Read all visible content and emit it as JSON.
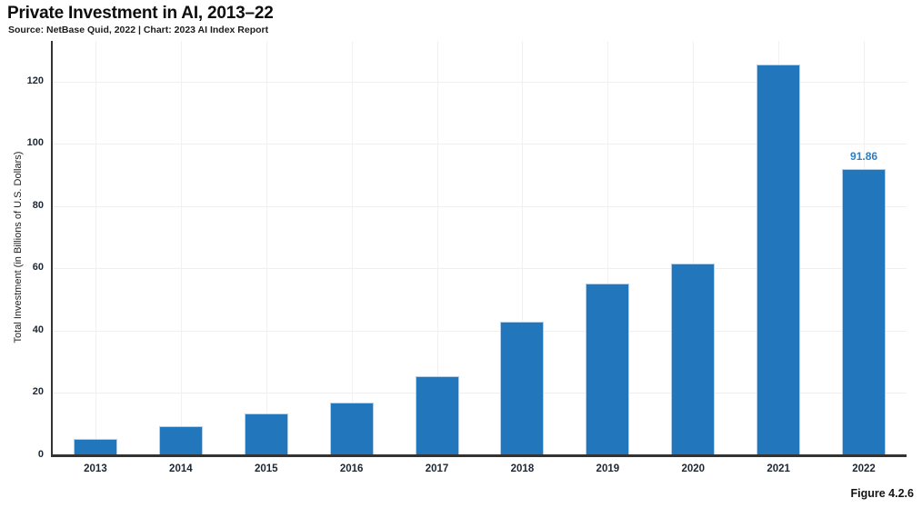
{
  "chart_data": {
    "type": "bar",
    "title": "Private Investment in AI, 2013–22",
    "subtitle": "Source: NetBase Quid, 2022 | Chart: 2023 AI Index Report",
    "figure_label": "Figure 4.2.6",
    "categories": [
      "2013",
      "2014",
      "2015",
      "2016",
      "2017",
      "2018",
      "2019",
      "2020",
      "2021",
      "2022"
    ],
    "values": [
      5.4,
      9.4,
      13.3,
      17.0,
      25.4,
      43.0,
      55.1,
      61.5,
      125.4,
      91.86
    ],
    "labeled_points": [
      {
        "category": "2022",
        "label": "91.86"
      }
    ],
    "xlabel": "",
    "ylabel": "Total Investment (in Billions of U.S. Dollars)",
    "yticks": [
      0,
      20,
      40,
      60,
      80,
      100,
      120
    ],
    "ylim": [
      0,
      133
    ],
    "grid": true,
    "legend": "none",
    "bar_color": "#2176bc",
    "bar_edge_color": "#b3cee8",
    "value_label_color": "#2e7fc2",
    "axis_color": "#333333",
    "grid_color": "#efefef"
  }
}
